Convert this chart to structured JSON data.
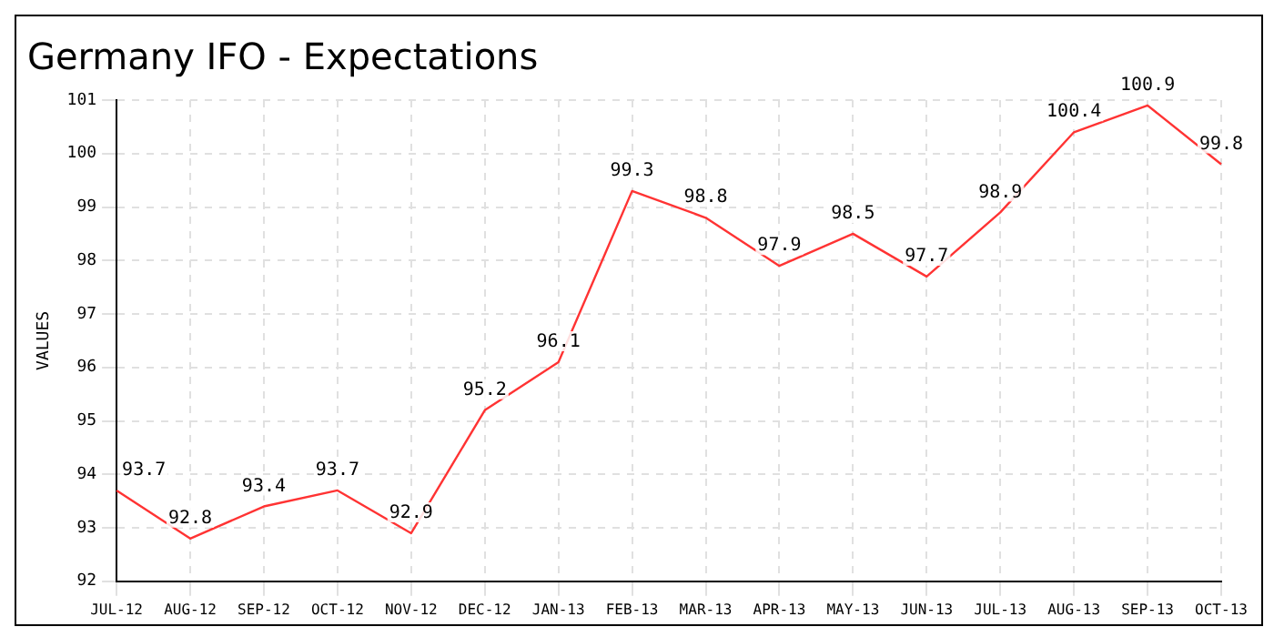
{
  "chart_data": {
    "type": "line",
    "title": "Germany IFO - Expectations",
    "ylabel": "VALUES",
    "categories": [
      "JUL-12",
      "AUG-12",
      "SEP-12",
      "OCT-12",
      "NOV-12",
      "DEC-12",
      "JAN-13",
      "FEB-13",
      "MAR-13",
      "APR-13",
      "MAY-13",
      "JUN-13",
      "JUL-13",
      "AUG-13",
      "SEP-13",
      "OCT-13"
    ],
    "series": [
      {
        "color": "#ff3333",
        "values": [
          93.7,
          92.8,
          93.4,
          93.7,
          92.9,
          95.2,
          96.1,
          99.3,
          98.8,
          97.9,
          98.5,
          97.7,
          98.9,
          100.4,
          100.9,
          99.8
        ]
      }
    ],
    "ylim": [
      92,
      101
    ],
    "yticks": [
      92,
      93,
      94,
      95,
      96,
      97,
      98,
      99,
      100,
      101
    ],
    "grid": true,
    "data_labels": true,
    "marker": "none",
    "line_style": "solid"
  }
}
